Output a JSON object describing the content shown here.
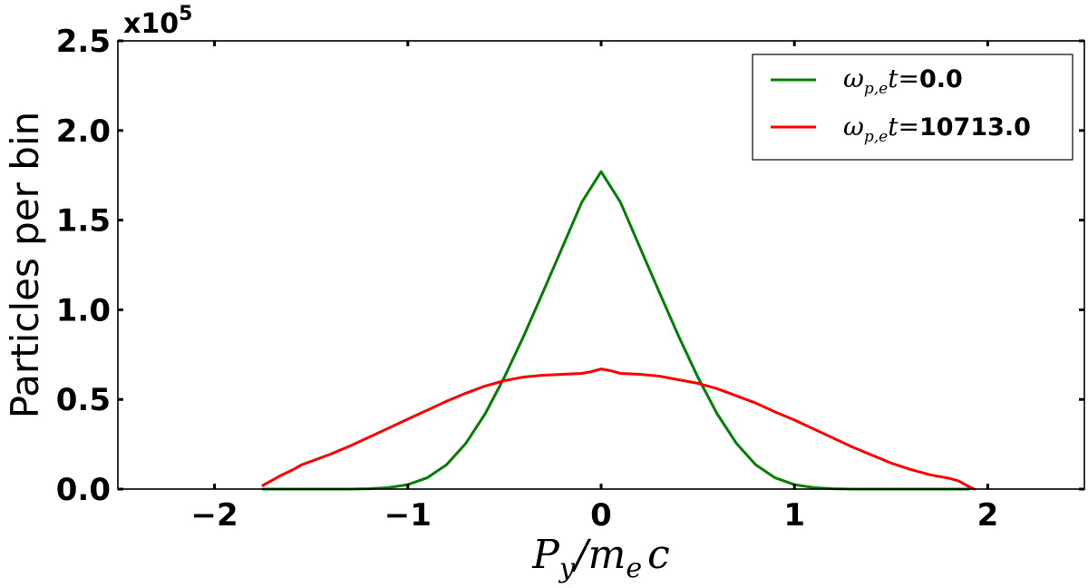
{
  "chart_data": {
    "type": "line",
    "xlabel": {
      "main": "P",
      "sub": "y",
      "slash": "/m",
      "sub2": "e",
      "tail": "c"
    },
    "ylabel": "Particles per bin",
    "y_offset_label": {
      "base": "x10",
      "exp": "5"
    },
    "xlim": [
      -2.5,
      2.5
    ],
    "ylim": [
      0,
      2.5
    ],
    "x_ticks": [
      -2,
      -1,
      0,
      1,
      2
    ],
    "x_tick_labels": [
      "−2",
      "−1",
      "0",
      "1",
      "2"
    ],
    "y_ticks": [
      0.0,
      0.5,
      1.0,
      1.5,
      2.0,
      2.5
    ],
    "y_tick_labels": [
      "0.0",
      "0.5",
      "1.0",
      "1.5",
      "2.0",
      "2.5"
    ],
    "grid": false,
    "legend_position": "top-right",
    "legend": [
      {
        "math": "ω",
        "sub": "p,e",
        "t": "t",
        "eq": "=",
        "value": "0.0",
        "color": "#008000"
      },
      {
        "math": "ω",
        "sub": "p,e",
        "t": "t",
        "eq": "=",
        "value": "10713.0",
        "color": "#ff0000"
      }
    ],
    "series": [
      {
        "color": "#008000",
        "x": [
          -1.75,
          -1.6,
          -1.5,
          -1.4,
          -1.3,
          -1.2,
          -1.1,
          -1.0,
          -0.9,
          -0.8,
          -0.7,
          -0.6,
          -0.5,
          -0.4,
          -0.3,
          -0.2,
          -0.1,
          0.0,
          0.1,
          0.2,
          0.3,
          0.4,
          0.5,
          0.6,
          0.7,
          0.8,
          0.9,
          1.0,
          1.1,
          1.2,
          1.3,
          1.4,
          1.5,
          1.6,
          1.75,
          1.9
        ],
        "y": [
          0.0,
          0.0,
          0.0,
          0.0,
          0.0,
          0.002,
          0.008,
          0.025,
          0.063,
          0.135,
          0.255,
          0.42,
          0.625,
          0.855,
          1.1,
          1.35,
          1.6,
          1.77,
          1.6,
          1.35,
          1.1,
          0.855,
          0.625,
          0.42,
          0.255,
          0.135,
          0.063,
          0.025,
          0.008,
          0.002,
          0.0,
          0.0,
          0.0,
          0.0,
          0.0,
          0.0
        ]
      },
      {
        "color": "#ff0000",
        "x": [
          -1.75,
          -1.7,
          -1.65,
          -1.6,
          -1.55,
          -1.5,
          -1.4,
          -1.3,
          -1.2,
          -1.1,
          -1.0,
          -0.9,
          -0.8,
          -0.7,
          -0.6,
          -0.5,
          -0.4,
          -0.3,
          -0.2,
          -0.1,
          -0.05,
          0.0,
          0.05,
          0.1,
          0.2,
          0.3,
          0.4,
          0.5,
          0.6,
          0.7,
          0.8,
          0.9,
          1.0,
          1.1,
          1.2,
          1.3,
          1.4,
          1.5,
          1.6,
          1.7,
          1.8,
          1.85,
          1.9,
          1.93
        ],
        "y": [
          0.02,
          0.05,
          0.08,
          0.105,
          0.135,
          0.155,
          0.195,
          0.24,
          0.29,
          0.34,
          0.39,
          0.44,
          0.49,
          0.535,
          0.575,
          0.605,
          0.625,
          0.635,
          0.64,
          0.645,
          0.655,
          0.67,
          0.66,
          0.645,
          0.64,
          0.63,
          0.61,
          0.59,
          0.56,
          0.52,
          0.48,
          0.43,
          0.385,
          0.335,
          0.285,
          0.235,
          0.19,
          0.145,
          0.11,
          0.08,
          0.06,
          0.045,
          0.015,
          0.0
        ]
      }
    ]
  }
}
